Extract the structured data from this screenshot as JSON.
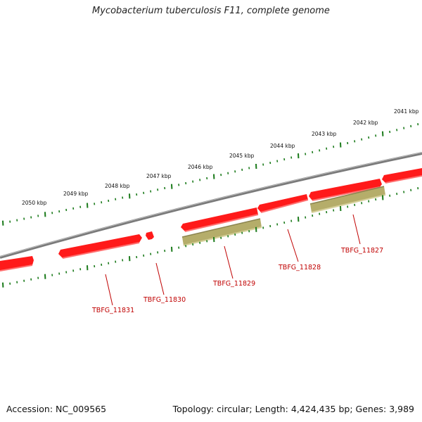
{
  "title": "Mycobacterium tuberculosis F11, complete genome",
  "footer": {
    "accession": "Accession: NC_009565",
    "summary": "Topology: circular; Length: 4,424,435 bp; Genes: 3,989"
  },
  "colors": {
    "backbone": "#808080",
    "gene_forward": "#ff0000",
    "gene_reverse": "#ff6a6a",
    "cds_feature": "#b7b06a",
    "ruler_ticks": "#1a7a1a",
    "gene_label": "#c00000"
  },
  "ruler_labels": [
    "2041 kbp",
    "2042 kbp",
    "2043 kbp",
    "2044 kbp",
    "2045 kbp",
    "2046 kbp",
    "2047 kbp",
    "2048 kbp",
    "2049 kbp",
    "2050 kbp"
  ],
  "gene_labels": [
    "TBFG_11827",
    "TBFG_11828",
    "TBFG_11829",
    "TBFG_11830",
    "TBFG_11831"
  ]
}
